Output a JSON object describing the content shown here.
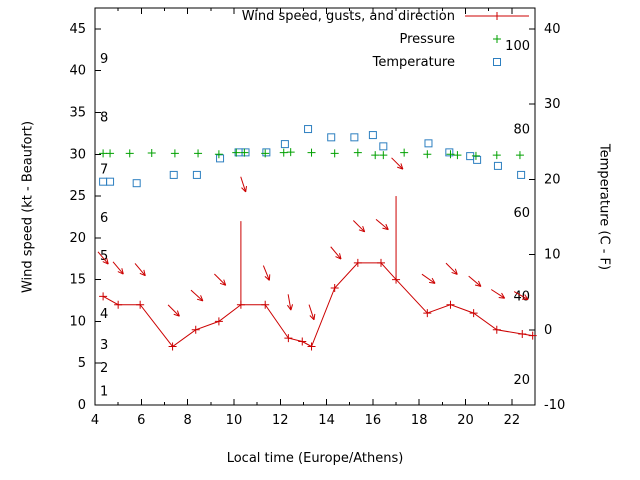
{
  "colors": {
    "wind": "#cc0000",
    "pressure": "#00a000",
    "temperature": "#2d7fc0",
    "axis": "#000000",
    "background": "#ffffff"
  },
  "chart_data": {
    "type": "line",
    "title": "",
    "xlabel": "Local time (Europe/Athens)",
    "ylabel_left": "Wind speed (kt - Beaufort)",
    "ylabel_right": "Temperature (C - F)",
    "x_range": [
      4,
      23
    ],
    "x_ticks": [
      4,
      6,
      8,
      10,
      12,
      14,
      16,
      18,
      20,
      22
    ],
    "y_left_range": [
      0,
      47.5
    ],
    "y_left_ticks": [
      0,
      5,
      10,
      15,
      20,
      25,
      30,
      35,
      40,
      45
    ],
    "y_right_range": [
      -10,
      42.8
    ],
    "y_right_ticks": [
      40,
      30,
      20,
      10,
      0,
      -10
    ],
    "grid": false,
    "legend_position": "top-right-inside",
    "beaufort_scale_labels": [
      {
        "label": "1",
        "kt": 1.6
      },
      {
        "label": "2",
        "kt": 4.4
      },
      {
        "label": "3",
        "kt": 7.2
      },
      {
        "label": "4",
        "kt": 10.9
      },
      {
        "label": "5",
        "kt": 17.8
      },
      {
        "label": "6",
        "kt": 22.4
      },
      {
        "label": "7",
        "kt": 28.2
      },
      {
        "label": "8",
        "kt": 34.4
      },
      {
        "label": "9",
        "kt": 41.4
      }
    ],
    "fahrenheit_scale_labels": [
      {
        "label": "20",
        "f": 20
      },
      {
        "label": "40",
        "f": 40
      },
      {
        "label": "60",
        "f": 60
      },
      {
        "label": "80",
        "f": 80
      },
      {
        "label": "100",
        "f": 100
      }
    ],
    "legend": [
      {
        "label": "Wind speed, gusts, and direction",
        "marker": "line-cross",
        "color": "#cc0000"
      },
      {
        "label": "Pressure",
        "marker": "cross",
        "color": "#00a000"
      },
      {
        "label": "Temperature",
        "marker": "square",
        "color": "#2d7fc0"
      }
    ],
    "series": {
      "wind_speed": {
        "name": "Wind speed (kt)",
        "color": "#cc0000",
        "axis": "left",
        "points": [
          [
            4.35,
            13
          ],
          [
            5.0,
            12
          ],
          [
            5.95,
            12
          ],
          [
            7.35,
            7
          ],
          [
            8.35,
            9
          ],
          [
            9.35,
            10
          ],
          [
            10.3,
            12
          ],
          [
            11.35,
            12
          ],
          [
            12.35,
            8
          ],
          [
            12.95,
            7.6
          ],
          [
            13.35,
            7
          ],
          [
            14.35,
            14
          ],
          [
            15.35,
            17
          ],
          [
            16.35,
            17
          ],
          [
            17.0,
            15
          ],
          [
            18.35,
            11
          ],
          [
            19.35,
            12
          ],
          [
            20.35,
            11
          ],
          [
            21.35,
            9
          ],
          [
            22.45,
            8.5
          ],
          [
            22.9,
            8.3
          ]
        ]
      },
      "wind_gusts": {
        "name": "Wind gusts (kt)",
        "color": "#cc0000",
        "axis": "left",
        "bars": [
          {
            "x": 10.3,
            "from": 12,
            "to": 22
          },
          {
            "x": 17.0,
            "from": 15,
            "to": 25
          }
        ]
      },
      "wind_direction_arrows": {
        "name": "Wind direction",
        "color": "#cc0000",
        "axis": "left",
        "arrows": [
          {
            "x": 4.35,
            "y": 17.6,
            "angle": -50
          },
          {
            "x": 5.0,
            "y": 16.4,
            "angle": -50
          },
          {
            "x": 5.95,
            "y": 16.2,
            "angle": -50
          },
          {
            "x": 7.4,
            "y": 11.3,
            "angle": -45
          },
          {
            "x": 8.4,
            "y": 13.1,
            "angle": -42
          },
          {
            "x": 9.4,
            "y": 15.0,
            "angle": -45
          },
          {
            "x": 10.4,
            "y": 26.4,
            "angle": -72
          },
          {
            "x": 11.4,
            "y": 15.8,
            "angle": -68
          },
          {
            "x": 12.4,
            "y": 12.3,
            "angle": -80
          },
          {
            "x": 13.35,
            "y": 11.1,
            "angle": -72
          },
          {
            "x": 14.4,
            "y": 18.2,
            "angle": -50
          },
          {
            "x": 15.4,
            "y": 21.4,
            "angle": -45
          },
          {
            "x": 16.4,
            "y": 21.6,
            "angle": -40
          },
          {
            "x": 17.05,
            "y": 28.9,
            "angle": -45
          },
          {
            "x": 18.4,
            "y": 15.1,
            "angle": -35
          },
          {
            "x": 19.4,
            "y": 16.3,
            "angle": -45
          },
          {
            "x": 20.4,
            "y": 14.8,
            "angle": -40
          },
          {
            "x": 21.4,
            "y": 13.3,
            "angle": -33
          },
          {
            "x": 22.4,
            "y": 13.1,
            "angle": -30
          }
        ]
      },
      "pressure": {
        "name": "Pressure",
        "color": "#00a000",
        "axis": "left",
        "points": [
          [
            4.35,
            30.1
          ],
          [
            4.65,
            30.1
          ],
          [
            5.5,
            30.1
          ],
          [
            6.45,
            30.15
          ],
          [
            7.45,
            30.1
          ],
          [
            8.45,
            30.1
          ],
          [
            9.35,
            30.0
          ],
          [
            10.1,
            30.2
          ],
          [
            10.45,
            30.2
          ],
          [
            11.35,
            30.1
          ],
          [
            12.15,
            30.2
          ],
          [
            12.45,
            30.25
          ],
          [
            13.35,
            30.2
          ],
          [
            14.35,
            30.1
          ],
          [
            15.35,
            30.2
          ],
          [
            16.1,
            29.9
          ],
          [
            16.45,
            29.9
          ],
          [
            17.35,
            30.2
          ],
          [
            18.35,
            30.0
          ],
          [
            19.35,
            30.0
          ],
          [
            19.65,
            29.9
          ],
          [
            20.45,
            29.8
          ],
          [
            21.35,
            29.9
          ],
          [
            22.35,
            29.9
          ]
        ]
      },
      "temperature": {
        "name": "Temperature (C)",
        "color": "#2d7fc0",
        "axis": "right",
        "points": [
          [
            4.35,
            19.7
          ],
          [
            4.65,
            19.7
          ],
          [
            5.8,
            19.5
          ],
          [
            7.4,
            20.6
          ],
          [
            8.4,
            20.6
          ],
          [
            9.4,
            22.8
          ],
          [
            10.2,
            23.6
          ],
          [
            10.5,
            23.6
          ],
          [
            11.4,
            23.6
          ],
          [
            12.2,
            24.7
          ],
          [
            13.2,
            26.7
          ],
          [
            14.2,
            25.6
          ],
          [
            15.2,
            25.6
          ],
          [
            16.0,
            25.9
          ],
          [
            16.45,
            24.4
          ],
          [
            18.4,
            24.8
          ],
          [
            19.3,
            23.6
          ],
          [
            20.2,
            23.1
          ],
          [
            20.5,
            22.6
          ],
          [
            21.4,
            21.8
          ],
          [
            22.4,
            20.6
          ]
        ]
      }
    }
  }
}
